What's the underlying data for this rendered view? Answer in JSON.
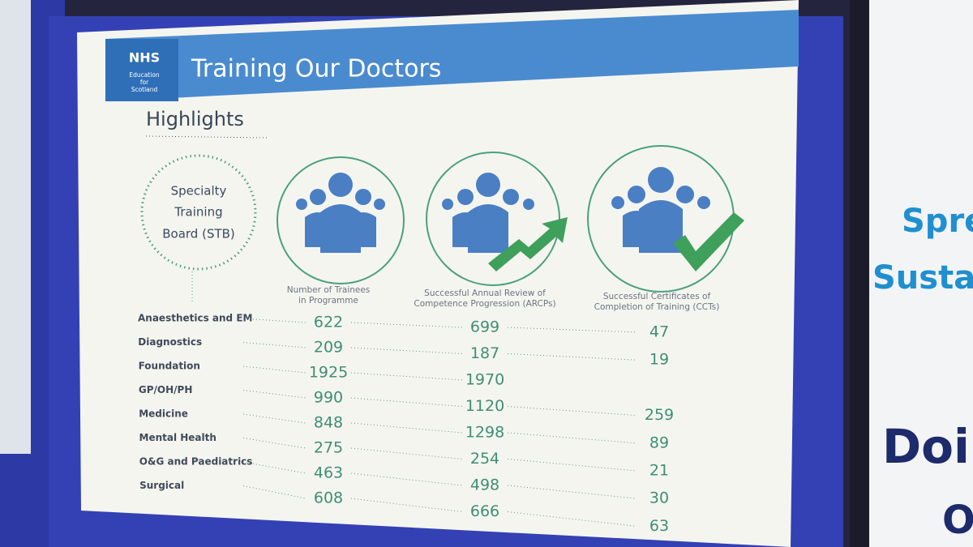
{
  "header": {
    "org": "NHS",
    "org_sub": [
      "Education",
      "for",
      "Scotland"
    ],
    "title": "Training Our Doctors"
  },
  "section": "Highlights",
  "badge": [
    "Specialty",
    "Training",
    "Board (STB)"
  ],
  "table": {
    "columns": [
      {
        "label": [
          "Number of Trainees",
          "in Programme"
        ]
      },
      {
        "label": [
          "Successful Annual Review of",
          "Competence Progression (ARCPs)"
        ]
      },
      {
        "label": [
          "Successful Certificates of",
          "Completion of Training (CCTs)"
        ]
      }
    ],
    "rows": [
      {
        "name": "Anaesthetics and EM",
        "values": [
          622,
          699,
          47
        ]
      },
      {
        "name": "Diagnostics",
        "values": [
          209,
          187,
          19
        ]
      },
      {
        "name": "Foundation",
        "values": [
          1925,
          1970,
          null
        ]
      },
      {
        "name": "GP/OH/PH",
        "values": [
          990,
          1120,
          259
        ]
      },
      {
        "name": "Medicine",
        "values": [
          848,
          1298,
          89
        ]
      },
      {
        "name": "Mental Health",
        "values": [
          275,
          254,
          21
        ]
      },
      {
        "name": "O&G and Paediatrics",
        "values": [
          463,
          498,
          30
        ]
      },
      {
        "name": "Surgical",
        "values": [
          608,
          666,
          63
        ]
      }
    ]
  },
  "side_panel": [
    "Sprea",
    "Sustai",
    "Doin",
    "O"
  ]
}
